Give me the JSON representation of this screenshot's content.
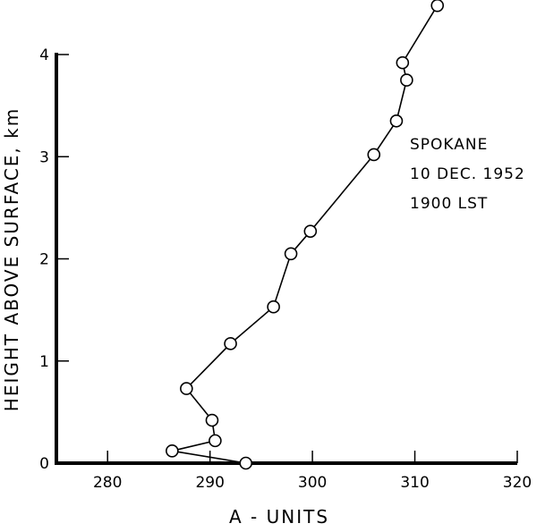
{
  "chart_data": {
    "type": "line",
    "xlabel": "A - UNITS",
    "ylabel": "HEIGHT ABOVE SURFACE, km",
    "xlim": [
      275,
      320
    ],
    "ylim": [
      0,
      4.5
    ],
    "x_ticks": [
      280,
      290,
      300,
      310,
      320
    ],
    "y_ticks": [
      0,
      1,
      2,
      3,
      4
    ],
    "annotation": [
      "SPOKANE",
      "10 DEC. 1952",
      "1900 LST"
    ],
    "grid": false,
    "series": [
      {
        "marker": "open-circle",
        "points": [
          {
            "x": 293.5,
            "y": 0.0
          },
          {
            "x": 286.3,
            "y": 0.12
          },
          {
            "x": 290.5,
            "y": 0.22
          },
          {
            "x": 290.2,
            "y": 0.42
          },
          {
            "x": 287.7,
            "y": 0.73
          },
          {
            "x": 292.0,
            "y": 1.17
          },
          {
            "x": 296.2,
            "y": 1.53
          },
          {
            "x": 297.9,
            "y": 2.05
          },
          {
            "x": 299.8,
            "y": 2.27
          },
          {
            "x": 306.0,
            "y": 3.02
          },
          {
            "x": 308.2,
            "y": 3.35
          },
          {
            "x": 309.2,
            "y": 3.75
          },
          {
            "x": 308.8,
            "y": 3.92
          },
          {
            "x": 312.2,
            "y": 4.48
          }
        ]
      }
    ]
  }
}
